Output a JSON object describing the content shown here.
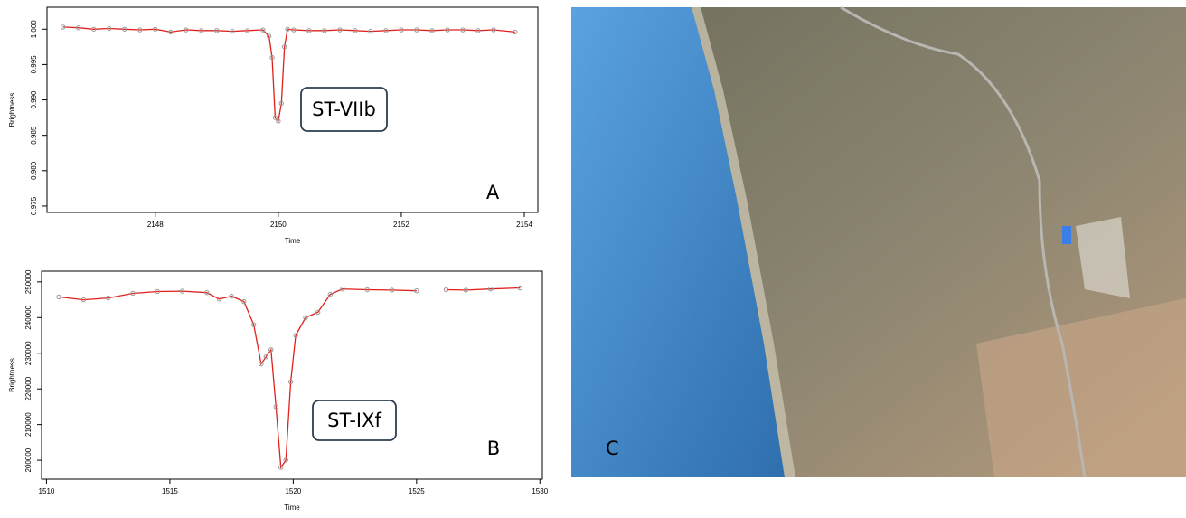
{
  "chart_data": [
    {
      "type": "line",
      "annotations": [
        "ST-VIIb",
        "A"
      ],
      "x_label": "Time",
      "y_label": "Brightness",
      "xlim": [
        2146.24,
        2154.22
      ],
      "ylim": [
        0.9741,
        1.0031
      ],
      "xticks": [
        2148,
        2150,
        2152,
        2154
      ],
      "yticks": [
        0.975,
        {
          "value": 0.98,
          "label": "0.980"
        },
        0.985,
        {
          "value": 0.99,
          "label": "0.990"
        },
        0.995,
        {
          "value": 1,
          "label": "1.000"
        }
      ],
      "series": [
        {
          "color": "#e0201b",
          "x": [
            2146.5,
            2146.75,
            2147,
            2147.25,
            2147.5,
            2147.75,
            2148,
            2148.25,
            2148.5,
            2148.75,
            2149,
            2149.25,
            2149.5,
            2149.75,
            2149.85,
            2149.9,
            2149.95,
            2150,
            2150.05,
            2150.1,
            2150.15,
            2150.25,
            2150.5,
            2150.75,
            2151,
            2151.25,
            2151.5,
            2151.75,
            2152,
            2152.25,
            2152.5,
            2152.75,
            2153,
            2153.25,
            2153.5,
            2153.85
          ],
          "values": [
            1.0003,
            1.0002,
            1.0,
            1.0001,
            1.0,
            0.9999,
            1.0,
            0.9996,
            0.9999,
            0.9998,
            0.9998,
            0.9997,
            0.9998,
            0.9999,
            0.999,
            0.996,
            0.9875,
            0.987,
            0.9895,
            0.9975,
            1.0,
            0.9999,
            0.9998,
            0.9998,
            0.9999,
            0.9998,
            0.9997,
            0.9998,
            0.9999,
            0.9999,
            0.9998,
            0.9999,
            0.9999,
            0.9998,
            0.9999,
            0.9996
          ]
        }
      ]
    },
    {
      "type": "line",
      "annotations": [
        "ST-IXf",
        "B"
      ],
      "x_label": "Time",
      "y_label": "Brightness",
      "xlim": [
        1509.8,
        1530.1
      ],
      "ylim": [
        194700,
        253000
      ],
      "xticks": [
        1510,
        1515,
        1520,
        1525,
        1530
      ],
      "yticks": [
        200000,
        210000,
        220000,
        230000,
        240000,
        250000
      ],
      "series": [
        {
          "color": "#e0201b",
          "x": [
            1510.5,
            1511.5,
            1512.5,
            1513.5,
            1514.5,
            1515.5,
            1516.5,
            1517,
            1517.5,
            1518,
            1518.4,
            1518.7,
            1518.9,
            1519.1,
            1519.3,
            1519.5,
            1519.7,
            1519.9,
            1520.1,
            1520.5,
            1521,
            1521.5,
            1522,
            1523,
            1524,
            1525,
            1525.6,
            1526.2,
            1527,
            1528,
            1529.2
          ],
          "values": [
            245800,
            245000,
            245500,
            246800,
            247300,
            247400,
            247000,
            245200,
            246000,
            244500,
            238000,
            227000,
            229000,
            231000,
            215000,
            198000,
            200000,
            222000,
            235000,
            240000,
            241500,
            246500,
            248000,
            247800,
            247700,
            247500,
            null,
            247800,
            247700,
            248000,
            248300
          ]
        }
      ]
    }
  ],
  "photo": {
    "label": "C"
  }
}
